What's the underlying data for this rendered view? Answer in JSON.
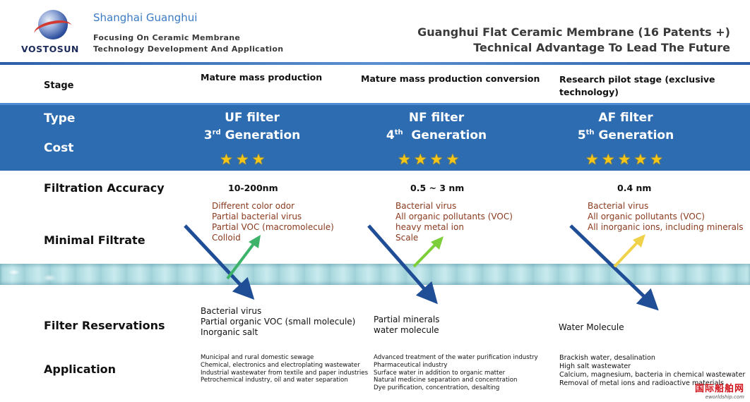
{
  "header": {
    "brand": "VOSTOSUN",
    "company": "Shanghai Guanghui",
    "tagline_line1": "Focusing On Ceramic Membrane",
    "tagline_line2": "Technology Development And Application",
    "title_line1": "Guanghui Flat Ceramic Membrane (16 Patents +)",
    "title_line2": "Technical Advantage To Lead The Future"
  },
  "row_labels": {
    "stage": "Stage",
    "type": "Type",
    "cost": "Cost",
    "accuracy": "Filtration Accuracy",
    "minimal_filtrate": "Minimal Filtrate",
    "filter_reservations": "Filter Reservations",
    "application": "Application"
  },
  "columns": [
    {
      "stage": "Mature mass production",
      "name": "UF filter",
      "gen_num": "3",
      "gen_sup": "rd",
      "gen_word": " Generation",
      "stars": 3,
      "accuracy": "10-200nm",
      "filtrate": [
        "Different color odor",
        "Partial bacterial virus",
        "Partial VOC (macromolecule)",
        "Colloid"
      ],
      "reservations": [
        "Bacterial virus",
        "Partial organic VOC (small molecule)",
        "Inorganic salt"
      ],
      "application": [
        "Municipal and rural domestic sewage",
        "Chemical, electronics and electroplating wastewater",
        "Industrial wastewater from textile and paper industries",
        "Petrochemical industry, oil and water separation"
      ],
      "arrow_color": "#3db36a"
    },
    {
      "stage": "Mature mass production conversion",
      "name": "NF filter",
      "gen_num": "4",
      "gen_sup": "th",
      "gen_word": "  Generation",
      "stars": 4,
      "accuracy": "0.5 ~ 3 nm",
      "filtrate": [
        "Bacterial virus",
        "All organic pollutants (VOC)",
        "heavy metal ion",
        "Scale"
      ],
      "reservations": [
        "Partial minerals",
        "water molecule"
      ],
      "application": [
        "Advanced treatment of the water purification industry",
        "Pharmaceutical industry",
        "Surface water in addition to organic matter",
        "Natural medicine separation and concentration",
        "Dye purification, concentration, desalting"
      ],
      "arrow_color": "#7dcf3a"
    },
    {
      "stage": "Research pilot stage (exclusive technology)",
      "name": "AF filter",
      "gen_num": "5",
      "gen_sup": "th",
      "gen_word": " Generation",
      "stars": 5,
      "accuracy": "0.4 nm",
      "filtrate": [
        "Bacterial virus",
        "All organic pollutants (VOC)",
        "All inorganic ions, including minerals"
      ],
      "reservations": [
        "Water Molecule"
      ],
      "application": [
        "Brackish water, desalination",
        "High salt wastewater",
        "Calcium, magnesium, bacteria in chemical wastewater",
        "Removal of metal ions and radioactive materials"
      ],
      "arrow_color": "#f0d24a"
    }
  ],
  "colors": {
    "band_blue": "#2d6cb0",
    "down_arrow": "#1f4e96",
    "filtrate_text": "#8a3a1e",
    "star": "#f5c518"
  },
  "watermark": {
    "cn": "国际船舶网",
    "en": "eworldship.com"
  }
}
